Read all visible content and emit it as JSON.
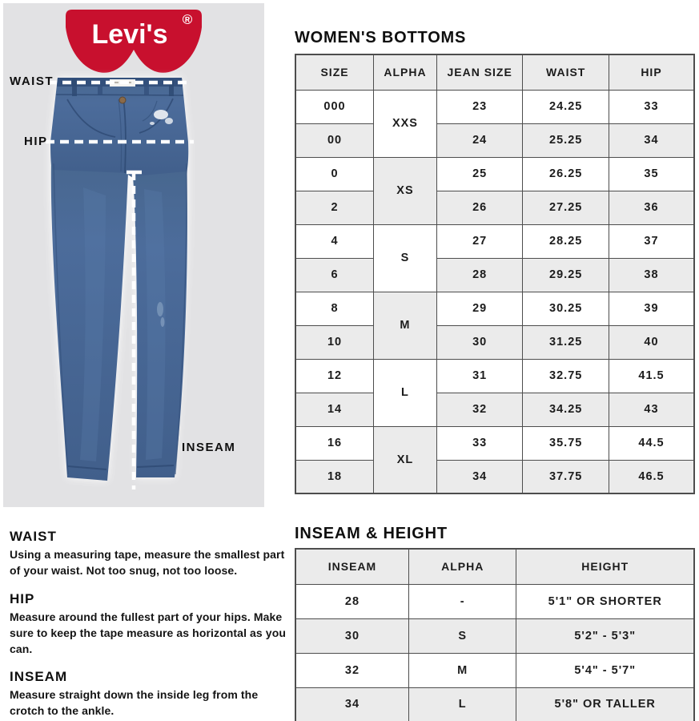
{
  "brand": {
    "name": "Levi's",
    "registered_mark": "®",
    "logo_red": "#c8102e"
  },
  "left_panel": {
    "waist_label": "WAIST",
    "hip_label": "HIP",
    "inseam_label": "INSEAM"
  },
  "measure_guide": [
    {
      "heading": "WAIST",
      "text": "Using a measuring tape, measure the smallest part of your waist. Not too snug, not too loose."
    },
    {
      "heading": "HIP",
      "text": "Measure around the fullest part of your hips. Make sure to keep the tape measure as horizontal as you can."
    },
    {
      "heading": "INSEAM",
      "text": "Measure straight down the inside leg from the crotch to the ankle."
    }
  ],
  "bottoms_table": {
    "title": "WOMEN'S BOTTOMS",
    "headers": [
      "SIZE",
      "ALPHA",
      "JEAN SIZE",
      "WAIST",
      "HIP"
    ],
    "groups": [
      {
        "alpha": "XXS",
        "rows": [
          {
            "size": "000",
            "jean_size": "23",
            "waist": "24.25",
            "hip": "33"
          },
          {
            "size": "00",
            "jean_size": "24",
            "waist": "25.25",
            "hip": "34"
          }
        ]
      },
      {
        "alpha": "XS",
        "rows": [
          {
            "size": "0",
            "jean_size": "25",
            "waist": "26.25",
            "hip": "35"
          },
          {
            "size": "2",
            "jean_size": "26",
            "waist": "27.25",
            "hip": "36"
          }
        ]
      },
      {
        "alpha": "S",
        "rows": [
          {
            "size": "4",
            "jean_size": "27",
            "waist": "28.25",
            "hip": "37"
          },
          {
            "size": "6",
            "jean_size": "28",
            "waist": "29.25",
            "hip": "38"
          }
        ]
      },
      {
        "alpha": "M",
        "rows": [
          {
            "size": "8",
            "jean_size": "29",
            "waist": "30.25",
            "hip": "39"
          },
          {
            "size": "10",
            "jean_size": "30",
            "waist": "31.25",
            "hip": "40"
          }
        ]
      },
      {
        "alpha": "L",
        "rows": [
          {
            "size": "12",
            "jean_size": "31",
            "waist": "32.75",
            "hip": "41.5"
          },
          {
            "size": "14",
            "jean_size": "32",
            "waist": "34.25",
            "hip": "43"
          }
        ]
      },
      {
        "alpha": "XL",
        "rows": [
          {
            "size": "16",
            "jean_size": "33",
            "waist": "35.75",
            "hip": "44.5"
          },
          {
            "size": "18",
            "jean_size": "34",
            "waist": "37.75",
            "hip": "46.5"
          }
        ]
      }
    ]
  },
  "inseam_table": {
    "title": "INSEAM & HEIGHT",
    "headers": [
      "INSEAM",
      "ALPHA",
      "HEIGHT"
    ],
    "rows": [
      {
        "inseam": "28",
        "alpha": "-",
        "height": "5'1\" OR SHORTER"
      },
      {
        "inseam": "30",
        "alpha": "S",
        "height": "5'2\" - 5'3\""
      },
      {
        "inseam": "32",
        "alpha": "M",
        "height": "5'4\" - 5'7\""
      },
      {
        "inseam": "34",
        "alpha": "L",
        "height": "5'8\" OR TALLER"
      }
    ]
  },
  "colors": {
    "panel_bg": "#e2e2e4",
    "row_alt": "#ebebeb",
    "table_border": "#4d4d4d",
    "denim": "#4a6a99",
    "denim_dark": "#32507c",
    "logo_red": "#c8102e"
  }
}
